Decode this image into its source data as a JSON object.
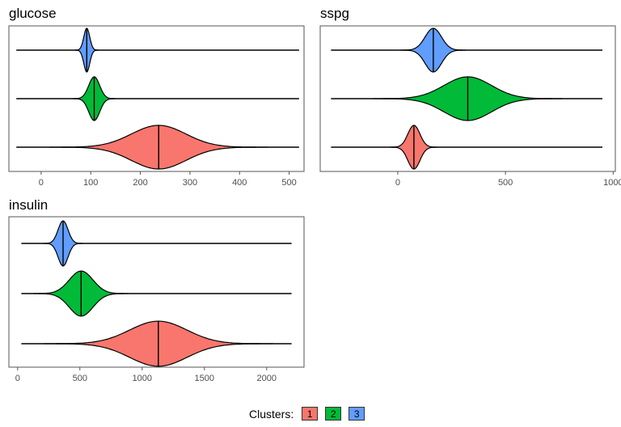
{
  "chart_data": [
    {
      "type": "violin",
      "title": "glucose",
      "xlim": [
        -65,
        530
      ],
      "ticks": [
        0,
        100,
        200,
        300,
        400,
        500
      ],
      "range": [
        -50,
        520
      ],
      "series": [
        {
          "cluster": "3",
          "center": 92,
          "median": 92,
          "sd": 6
        },
        {
          "cluster": "2",
          "center": 107,
          "median": 107,
          "sd": 11
        },
        {
          "cluster": "1",
          "center": 237,
          "median": 237,
          "sd": 55
        }
      ]
    },
    {
      "type": "violin",
      "title": "sspg",
      "xlim": [
        -360,
        1010
      ],
      "ticks": [
        0,
        500,
        1000
      ],
      "range": [
        -310,
        950
      ],
      "series": [
        {
          "cluster": "3",
          "center": 165,
          "median": 165,
          "sd": 38
        },
        {
          "cluster": "2",
          "center": 325,
          "median": 325,
          "sd": 110
        },
        {
          "cluster": "1",
          "center": 75,
          "median": 75,
          "sd": 28
        }
      ]
    },
    {
      "type": "violin",
      "title": "insulin",
      "xlim": [
        -70,
        2300
      ],
      "ticks": [
        0,
        500,
        1000,
        1500,
        2000
      ],
      "range": [
        30,
        2200
      ],
      "series": [
        {
          "cluster": "3",
          "center": 365,
          "median": 365,
          "sd": 40
        },
        {
          "cluster": "2",
          "center": 510,
          "median": 510,
          "sd": 95
        },
        {
          "cluster": "1",
          "center": 1130,
          "median": 1130,
          "sd": 230
        }
      ]
    }
  ],
  "legend": {
    "title": "Clusters:",
    "items": [
      {
        "label": "1",
        "color": "#F8766D"
      },
      {
        "label": "2",
        "color": "#00BA38"
      },
      {
        "label": "3",
        "color": "#619CFF"
      }
    ]
  },
  "colors": {
    "1": "#F8766D",
    "2": "#00BA38",
    "3": "#619CFF"
  }
}
